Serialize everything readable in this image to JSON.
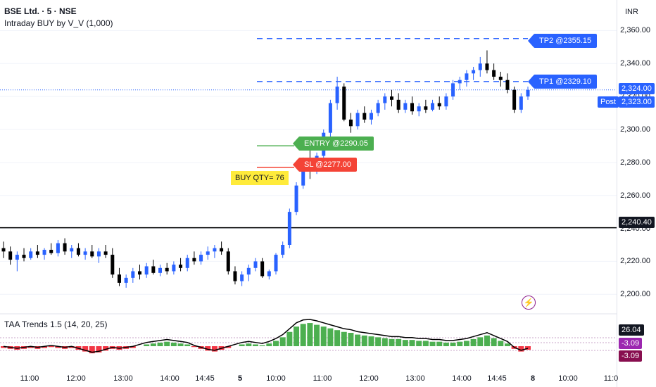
{
  "header": {
    "symbol_line": "BSE Ltd. · 5 · NSE",
    "indicator_line": "Intraday BUY by V_V (1,000)"
  },
  "currency": "INR",
  "price_axis": {
    "ticks": [
      "2,360.00",
      "2,340.00",
      "2,320.00",
      "2,300.00",
      "2,280.00",
      "2,260.00",
      "2,240.00",
      "2,220.00",
      "2,200.00"
    ],
    "tick_values": [
      2360,
      2340,
      2320,
      2300,
      2280,
      2260,
      2240,
      2220,
      2200
    ],
    "badges": {
      "last_price": "2,324.00",
      "post_label": "Post",
      "post_price": "2,323.00",
      "line_level": "2,240.40"
    },
    "colors": {
      "blue": "#2962ff",
      "black": "#000000"
    }
  },
  "signals": {
    "tp2": "TP2 @2355.15",
    "tp1": "TP1 @2329.10",
    "entry": "ENTRY @2290.05",
    "sl": "SL @2277.00",
    "qty": "BUY QTY= 76",
    "levels": {
      "tp2": 2355.15,
      "tp1": 2329.1,
      "entry": 2290.05,
      "sl": 2277.0,
      "horizontal": 2240.4
    },
    "colors": {
      "tp": "#2962ff",
      "entry": "#4caf50",
      "sl": "#f44336",
      "qty": "#ffeb3b"
    }
  },
  "time_axis": {
    "labels": [
      "11:00",
      "12:00",
      "13:00",
      "14:00",
      "14:45",
      "5",
      "10:00",
      "11:00",
      "12:00",
      "13:00",
      "14:00",
      "14:45",
      "8",
      "10:00",
      "11:0"
    ]
  },
  "indicator": {
    "title": "TAA Trends 1.5 (14, 20, 25)",
    "badges": {
      "value1": "26.04",
      "value2": "-3.09",
      "value3": "-3.09"
    },
    "colors": {
      "up": "#4caf50",
      "down": "#f23645",
      "line": "#000000",
      "badge2": "#9c27b0",
      "badge3": "#880e4f"
    }
  },
  "chart_data": {
    "type": "candlestick",
    "ylim": [
      2195,
      2370
    ],
    "candles": [
      [
        2228,
        2232,
        2222,
        2226
      ],
      [
        2226,
        2229,
        2218,
        2221
      ],
      [
        2221,
        2226,
        2214,
        2224
      ],
      [
        2224,
        2228,
        2220,
        2222
      ],
      [
        2222,
        2228,
        2221,
        2226
      ],
      [
        2226,
        2230,
        2222,
        2224
      ],
      [
        2224,
        2228,
        2221,
        2227
      ],
      [
        2227,
        2231,
        2224,
        2225
      ],
      [
        2225,
        2233,
        2223,
        2231
      ],
      [
        2231,
        2234,
        2224,
        2226
      ],
      [
        2226,
        2230,
        2222,
        2228
      ],
      [
        2228,
        2231,
        2223,
        2224
      ],
      [
        2224,
        2228,
        2221,
        2226
      ],
      [
        2226,
        2230,
        2222,
        2223
      ],
      [
        2223,
        2228,
        2219,
        2226
      ],
      [
        2226,
        2230,
        2222,
        2224
      ],
      [
        2224,
        2228,
        2210,
        2212
      ],
      [
        2212,
        2216,
        2205,
        2207
      ],
      [
        2207,
        2212,
        2204,
        2210
      ],
      [
        2210,
        2216,
        2207,
        2214
      ],
      [
        2214,
        2218,
        2209,
        2212
      ],
      [
        2212,
        2219,
        2210,
        2217
      ],
      [
        2217,
        2221,
        2212,
        2213
      ],
      [
        2213,
        2218,
        2211,
        2216
      ],
      [
        2216,
        2219,
        2212,
        2214
      ],
      [
        2214,
        2220,
        2212,
        2218
      ],
      [
        2218,
        2222,
        2214,
        2216
      ],
      [
        2216,
        2224,
        2214,
        2222
      ],
      [
        2222,
        2226,
        2218,
        2220
      ],
      [
        2220,
        2226,
        2218,
        2224
      ],
      [
        2224,
        2229,
        2221,
        2226
      ],
      [
        2226,
        2230,
        2222,
        2228
      ],
      [
        2228,
        2232,
        2224,
        2226
      ],
      [
        2226,
        2228,
        2212,
        2214
      ],
      [
        2214,
        2217,
        2206,
        2208
      ],
      [
        2208,
        2214,
        2205,
        2212
      ],
      [
        2212,
        2218,
        2208,
        2216
      ],
      [
        2216,
        2222,
        2214,
        2220
      ],
      [
        2220,
        2222,
        2210,
        2211
      ],
      [
        2211,
        2215,
        2209,
        2214
      ],
      [
        2214,
        2225,
        2212,
        2224
      ],
      [
        2224,
        2232,
        2222,
        2230
      ],
      [
        2230,
        2252,
        2228,
        2250
      ],
      [
        2250,
        2268,
        2248,
        2266
      ],
      [
        2266,
        2283,
        2264,
        2282
      ],
      [
        2282,
        2288,
        2270,
        2276
      ],
      [
        2276,
        2286,
        2273,
        2284
      ],
      [
        2284,
        2300,
        2282,
        2298
      ],
      [
        2298,
        2318,
        2294,
        2316
      ],
      [
        2316,
        2332,
        2312,
        2326
      ],
      [
        2326,
        2328,
        2305,
        2306
      ],
      [
        2306,
        2310,
        2298,
        2302
      ],
      [
        2302,
        2312,
        2300,
        2310
      ],
      [
        2310,
        2314,
        2304,
        2306
      ],
      [
        2306,
        2312,
        2303,
        2310
      ],
      [
        2310,
        2318,
        2308,
        2316
      ],
      [
        2316,
        2322,
        2312,
        2320
      ],
      [
        2320,
        2324,
        2314,
        2318
      ],
      [
        2318,
        2322,
        2310,
        2312
      ],
      [
        2312,
        2318,
        2310,
        2316
      ],
      [
        2316,
        2320,
        2309,
        2311
      ],
      [
        2311,
        2316,
        2308,
        2314
      ],
      [
        2314,
        2318,
        2310,
        2312
      ],
      [
        2312,
        2318,
        2311,
        2316
      ],
      [
        2316,
        2320,
        2312,
        2314
      ],
      [
        2314,
        2322,
        2312,
        2320
      ],
      [
        2320,
        2330,
        2318,
        2328
      ],
      [
        2328,
        2332,
        2324,
        2330
      ],
      [
        2330,
        2336,
        2326,
        2334
      ],
      [
        2334,
        2338,
        2330,
        2336
      ],
      [
        2336,
        2344,
        2332,
        2340
      ],
      [
        2340,
        2348,
        2334,
        2336
      ],
      [
        2336,
        2340,
        2330,
        2332
      ],
      [
        2332,
        2335,
        2326,
        2330
      ],
      [
        2330,
        2334,
        2322,
        2324
      ],
      [
        2324,
        2326,
        2310,
        2312
      ],
      [
        2312,
        2322,
        2310,
        2320
      ],
      [
        2320,
        2326,
        2318,
        2324
      ]
    ],
    "oscillator": [
      -2,
      -3,
      -4,
      -3,
      -2,
      -3,
      -2,
      -1,
      -2,
      -3,
      -2,
      -4,
      -6,
      -8,
      -7,
      -5,
      -3,
      -4,
      -3,
      -2,
      0,
      2,
      3,
      4,
      5,
      4,
      3,
      2,
      -1,
      -3,
      -5,
      -6,
      -4,
      -2,
      0,
      2,
      3,
      2,
      1,
      3,
      6,
      10,
      16,
      22,
      25,
      26,
      24,
      22,
      20,
      18,
      16,
      15,
      13,
      12,
      11,
      10,
      9,
      8,
      8,
      7,
      7,
      6,
      6,
      5,
      5,
      4,
      4,
      5,
      6,
      8,
      10,
      12,
      9,
      6,
      3,
      -3,
      -6,
      -4
    ]
  }
}
